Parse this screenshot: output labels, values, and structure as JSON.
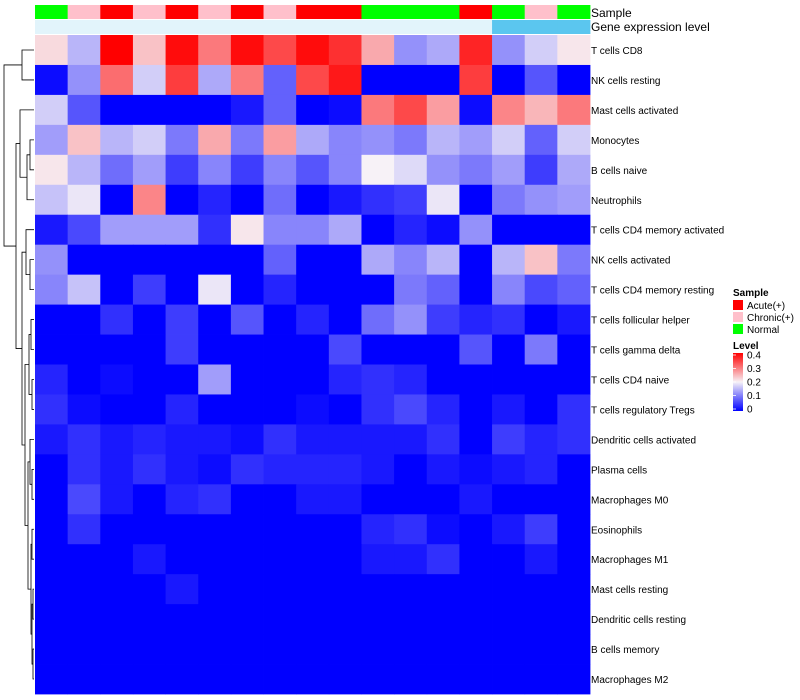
{
  "chart_data": {
    "type": "heatmap",
    "title": "",
    "annotation_rows": [
      "Sample",
      "Gene expression level"
    ],
    "sample_groups": [
      "Normal",
      "Chronic(+)",
      "Acute(+)",
      "Chronic(+)",
      "Acute(+)",
      "Chronic(+)",
      "Acute(+)",
      "Chronic(+)",
      "Acute(+)",
      "Acute(+)",
      "Normal",
      "Normal",
      "Normal",
      "Acute(+)",
      "Normal",
      "Chronic(+)",
      "Normal"
    ],
    "cell_types": [
      "T cells CD8",
      "NK cells resting",
      "Mast cells activated",
      "Monocytes",
      "B cells naive",
      "Neutrophils",
      "T cells CD4 memory activated",
      "NK cells activated",
      "T cells CD4 memory resting",
      "T cells follicular helper",
      "T cells gamma delta",
      "T cells CD4 naive",
      "T cells regulatory  Tregs",
      "Dendritic cells activated",
      "Plasma cells",
      "Macrophages M0",
      "Eosinophils",
      "Macrophages M1",
      "Mast cells resting",
      "Dendritic cells resting",
      "B cells memory",
      "Macrophages M2"
    ],
    "values": [
      [
        0.22,
        0.15,
        0.4,
        0.24,
        0.39,
        0.3,
        0.39,
        0.34,
        0.39,
        0.36,
        0.26,
        0.12,
        0.14,
        0.37,
        0.12,
        0.17,
        0.21
      ],
      [
        0.01,
        0.12,
        0.31,
        0.17,
        0.35,
        0.14,
        0.3,
        0.08,
        0.34,
        0.38,
        0.0,
        0.0,
        0.0,
        0.35,
        0.0,
        0.07,
        0.0
      ],
      [
        0.17,
        0.07,
        0.0,
        0.0,
        0.0,
        0.0,
        0.02,
        0.08,
        0.0,
        0.01,
        0.3,
        0.34,
        0.27,
        0.01,
        0.29,
        0.25,
        0.3
      ],
      [
        0.13,
        0.24,
        0.15,
        0.17,
        0.1,
        0.26,
        0.1,
        0.27,
        0.14,
        0.11,
        0.12,
        0.1,
        0.15,
        0.13,
        0.17,
        0.08,
        0.17
      ],
      [
        0.21,
        0.15,
        0.09,
        0.13,
        0.05,
        0.11,
        0.05,
        0.11,
        0.07,
        0.11,
        0.2,
        0.18,
        0.12,
        0.1,
        0.13,
        0.05,
        0.14
      ],
      [
        0.16,
        0.19,
        0.0,
        0.29,
        0.0,
        0.03,
        0.0,
        0.09,
        0.0,
        0.02,
        0.04,
        0.05,
        0.19,
        0.0,
        0.1,
        0.12,
        0.13
      ],
      [
        0.02,
        0.06,
        0.13,
        0.13,
        0.13,
        0.04,
        0.21,
        0.11,
        0.11,
        0.14,
        0.0,
        0.03,
        0.01,
        0.12,
        0.0,
        0.0,
        0.0
      ],
      [
        0.12,
        0.0,
        0.0,
        0.0,
        0.0,
        0.0,
        0.0,
        0.08,
        0.0,
        0.0,
        0.14,
        0.11,
        0.15,
        0.0,
        0.15,
        0.24,
        0.1
      ],
      [
        0.11,
        0.16,
        0.0,
        0.05,
        0.0,
        0.19,
        0.0,
        0.03,
        0.0,
        0.0,
        0.0,
        0.1,
        0.08,
        0.0,
        0.11,
        0.06,
        0.08
      ],
      [
        0.0,
        0.0,
        0.04,
        0.0,
        0.05,
        0.0,
        0.07,
        0.0,
        0.03,
        0.0,
        0.09,
        0.12,
        0.05,
        0.03,
        0.04,
        0.0,
        0.02
      ],
      [
        0.0,
        0.0,
        0.0,
        0.0,
        0.05,
        0.0,
        0.0,
        0.0,
        0.0,
        0.06,
        0.0,
        0.0,
        0.0,
        0.07,
        0.0,
        0.1,
        0.0
      ],
      [
        0.03,
        0.0,
        0.01,
        0.0,
        0.0,
        0.13,
        0.0,
        0.0,
        0.0,
        0.03,
        0.04,
        0.03,
        0.0,
        0.0,
        0.0,
        0.0,
        0.0
      ],
      [
        0.04,
        0.01,
        0.0,
        0.0,
        0.03,
        0.0,
        0.0,
        0.0,
        0.01,
        0.0,
        0.04,
        0.06,
        0.03,
        0.0,
        0.02,
        0.0,
        0.04
      ],
      [
        0.02,
        0.04,
        0.02,
        0.03,
        0.02,
        0.02,
        0.01,
        0.04,
        0.02,
        0.02,
        0.02,
        0.02,
        0.04,
        0.0,
        0.05,
        0.03,
        0.04
      ],
      [
        0.0,
        0.04,
        0.02,
        0.04,
        0.02,
        0.01,
        0.04,
        0.03,
        0.03,
        0.03,
        0.02,
        0.0,
        0.02,
        0.01,
        0.02,
        0.03,
        0.0
      ],
      [
        0.0,
        0.06,
        0.02,
        0.0,
        0.03,
        0.04,
        0.0,
        0.0,
        0.02,
        0.02,
        0.0,
        0.0,
        0.0,
        0.02,
        0.0,
        0.0,
        0.0
      ],
      [
        0.0,
        0.04,
        0.0,
        0.0,
        0.0,
        0.0,
        0.0,
        0.0,
        0.0,
        0.0,
        0.03,
        0.04,
        0.01,
        0.0,
        0.02,
        0.05,
        0.0
      ],
      [
        0.0,
        0.0,
        0.0,
        0.02,
        0.0,
        0.0,
        0.0,
        0.0,
        0.0,
        0.0,
        0.02,
        0.02,
        0.04,
        0.0,
        0.0,
        0.02,
        0.0
      ],
      [
        0.0,
        0.0,
        0.0,
        0.0,
        0.02,
        0.0,
        0.0,
        0.0,
        0.0,
        0.0,
        0.0,
        0.0,
        0.0,
        0.0,
        0.0,
        0.0,
        0.0
      ],
      [
        0.0,
        0.0,
        0.0,
        0.0,
        0.0,
        0.0,
        0.0,
        0.0,
        0.0,
        0.0,
        0.0,
        0.0,
        0.0,
        0.0,
        0.0,
        0.0,
        0.0
      ],
      [
        0.0,
        0.0,
        0.0,
        0.0,
        0.0,
        0.0,
        0.0,
        0.0,
        0.0,
        0.0,
        0.0,
        0.0,
        0.0,
        0.0,
        0.0,
        0.0,
        0.0
      ],
      [
        0.0,
        0.0,
        0.0,
        0.0,
        0.0,
        0.0,
        0.0,
        0.0,
        0.0,
        0.0,
        0.0,
        0.0,
        0.0,
        0.0,
        0.0,
        0.0,
        0.0
      ]
    ],
    "color_scale": {
      "min": 0,
      "mid": 0.2,
      "max": 0.4,
      "low_color": "#0000ff",
      "mid_color": "#f7f2f7",
      "high_color": "#ff0000"
    },
    "legend_sample": {
      "title": "Sample",
      "entries": [
        {
          "label": "Acute(+)",
          "color": "#ff0000"
        },
        {
          "label": "Chronic(+)",
          "color": "#ffc0cb"
        },
        {
          "label": "Normal",
          "color": "#00ff00"
        }
      ]
    },
    "legend_level": {
      "title": "Level",
      "ticks": [
        "0.4",
        "0.3",
        "0.2",
        "0.1",
        "0"
      ],
      "tick_values": [
        0.4,
        0.3,
        0.2,
        0.1,
        0
      ]
    },
    "expression_bar_colors": [
      "#e2f4fb",
      "#e2f4fb",
      "#e2f4fb",
      "#e2f4fb",
      "#e2f4fb",
      "#e2f4fb",
      "#e2f4fb",
      "#e2f4fb",
      "#e2f4fb",
      "#e2f4fb",
      "#e2f4fb",
      "#e2f4fb",
      "#e2f4fb",
      "#e2f4fb",
      "#5bc6ef",
      "#5bc6ef",
      "#5bc6ef"
    ]
  }
}
